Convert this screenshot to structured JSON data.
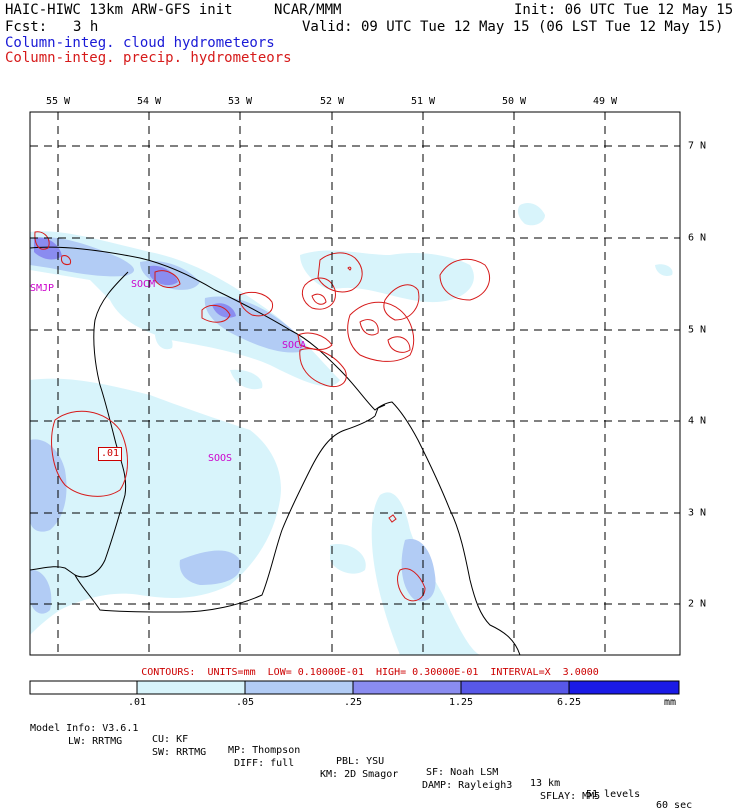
{
  "header": {
    "model": "HAIC-HIWC 13km ARW-GFS init",
    "org": "NCAR/MMM",
    "init": "Init: 06 UTC Tue 12 May 15",
    "fcst_label": "Fcst:",
    "fcst_value": "3 h",
    "valid": "Valid: 09 UTC Tue 12 May 15 (06 LST Tue 12 May 15)",
    "cloud_label": "Column-integ. cloud hydrometeors",
    "precip_label": "Column-integ. precip. hydrometeors"
  },
  "map": {
    "lon_labels": [
      "55 W",
      "54 W",
      "53 W",
      "52 W",
      "51 W",
      "50 W",
      "49 W"
    ],
    "lat_labels": [
      "7 N",
      "6 N",
      "5 N",
      "4 N",
      "3 N",
      "2 N"
    ],
    "stations": [
      "SMJP",
      "SOCM",
      "SOCA",
      "SOOS"
    ],
    "contour_label": ".01"
  },
  "contours_info": "CONTOURS:  UNITS=mm  LOW= 0.10000E-01  HIGH= 0.30000E-01  INTERVAL=X  3.0000",
  "colorbar": {
    "ticks": [
      ".01",
      ".05",
      ".25",
      "1.25",
      "6.25"
    ],
    "unit": "mm",
    "colors": [
      "#ffffff",
      "#d8f4fb",
      "#b2ccf5",
      "#8a8cf0",
      "#5858e8",
      "#1a1ae6"
    ]
  },
  "footer": {
    "line1": [
      "Model Info: V3.6.1",
      "CU: KF",
      "MP: Thompson",
      "PBL: YSU",
      "SF: Noah LSM",
      "13 km",
      "51 levels",
      "60 sec"
    ],
    "line2": [
      "LW: RRTMG",
      "SW: RRTMG",
      "DIFF: full",
      "KM: 2D Smagor",
      "DAMP: Rayleigh3",
      "SFLAY: MM5"
    ]
  }
}
